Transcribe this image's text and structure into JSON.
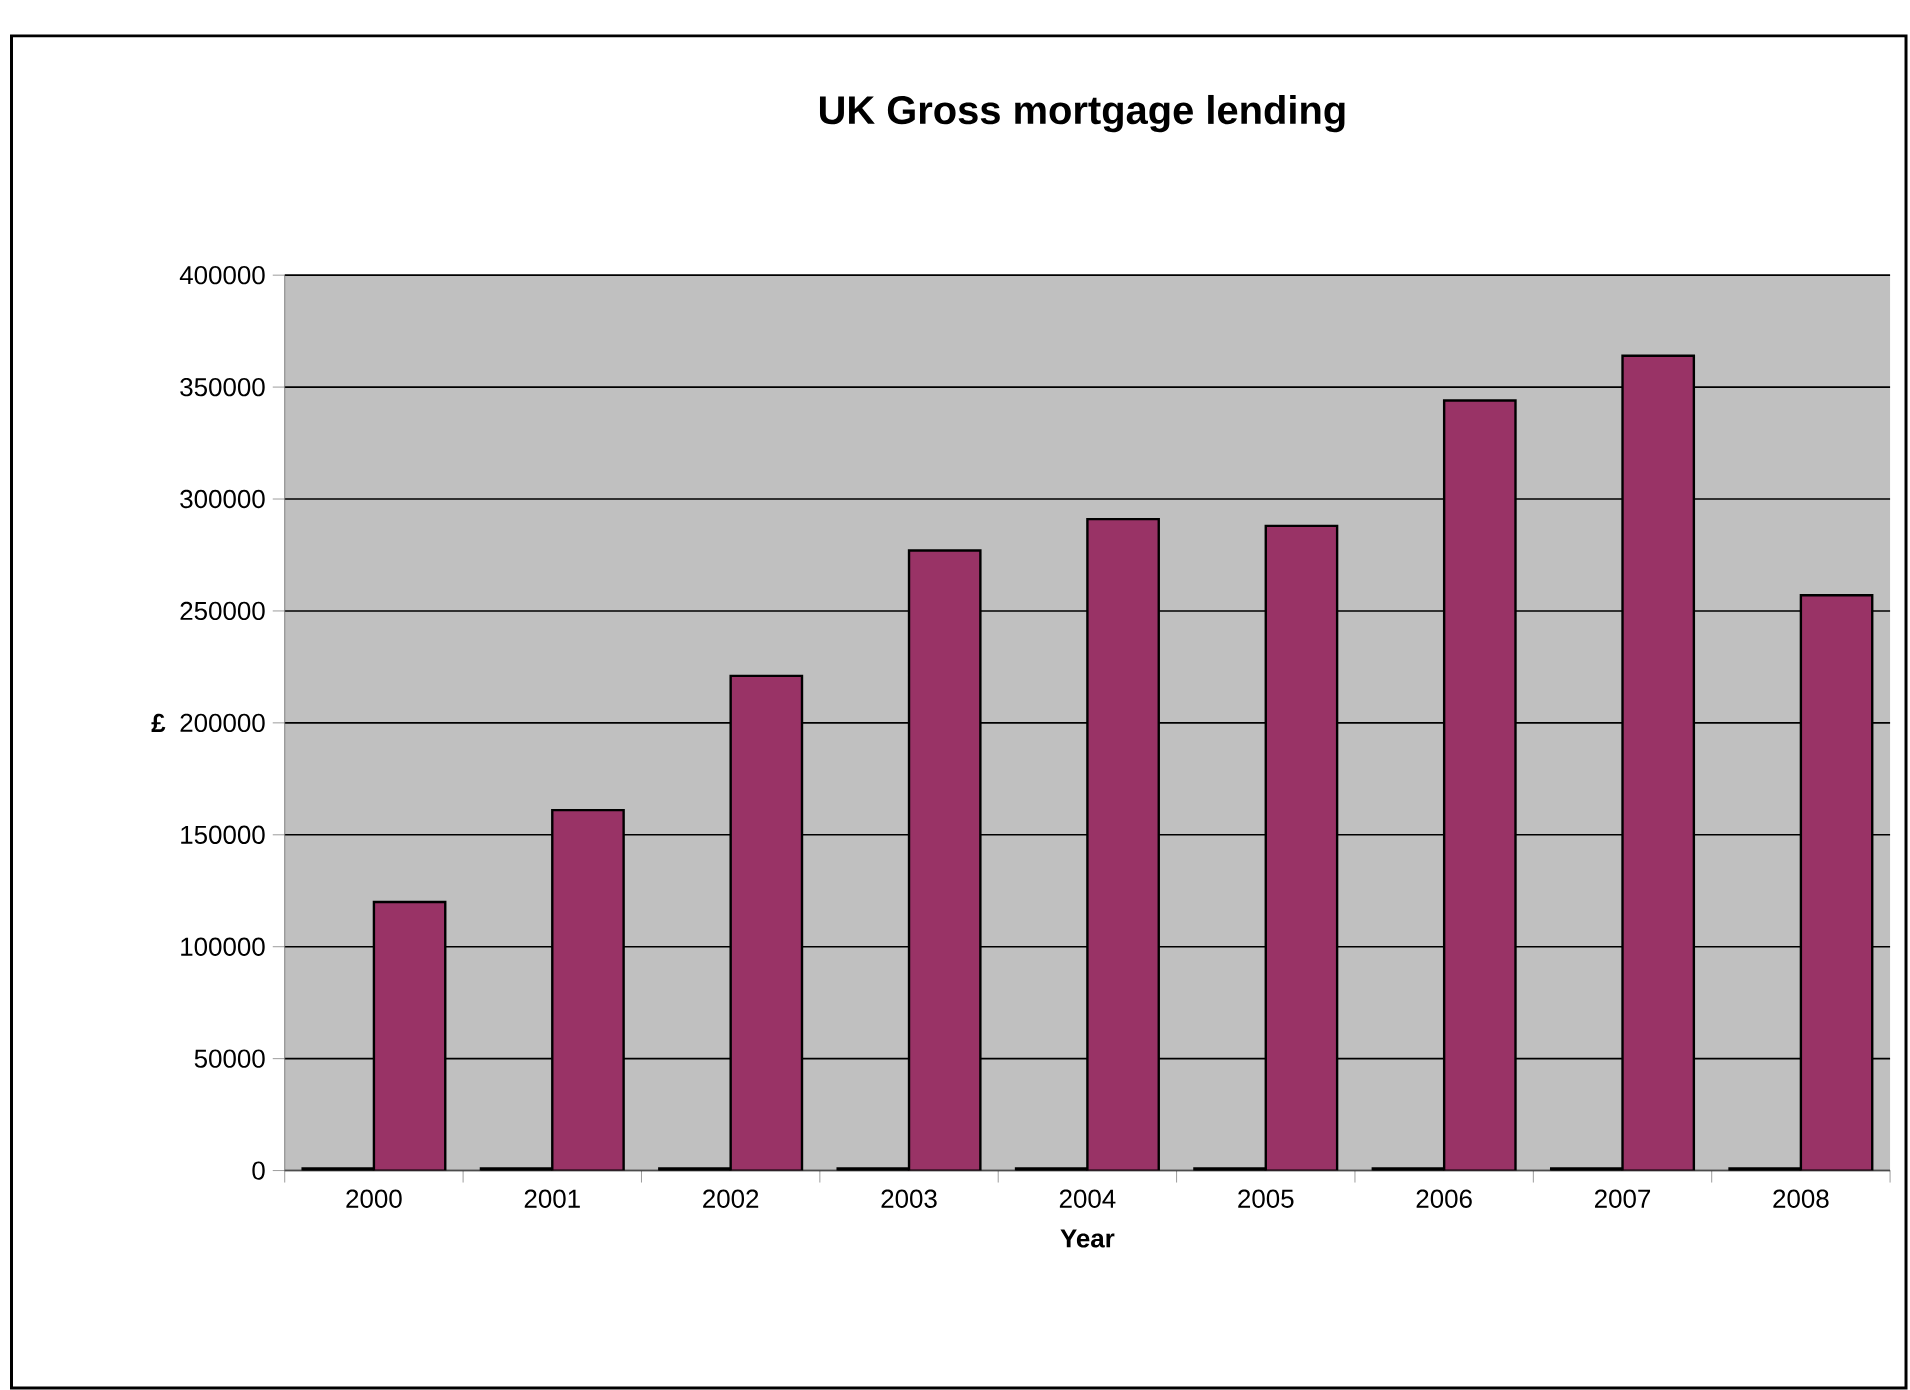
{
  "chart_data": {
    "type": "bar",
    "title": "UK Gross mortgage lending",
    "xlabel": "Year",
    "ylabel": "£",
    "categories": [
      "2000",
      "2001",
      "2002",
      "2003",
      "2004",
      "2005",
      "2006",
      "2007",
      "2008"
    ],
    "series": [
      {
        "color": "#000000",
        "values": [
          1000,
          1000,
          1000,
          1000,
          1000,
          1000,
          1000,
          1000,
          1000
        ]
      },
      {
        "color": "#993366",
        "values": [
          120000,
          161000,
          221000,
          277000,
          291000,
          288000,
          344000,
          364000,
          257000
        ]
      }
    ],
    "ylim": [
      0,
      400000
    ],
    "yticks": [
      0,
      50000,
      100000,
      150000,
      200000,
      250000,
      300000,
      350000,
      400000
    ],
    "grid": "y"
  }
}
